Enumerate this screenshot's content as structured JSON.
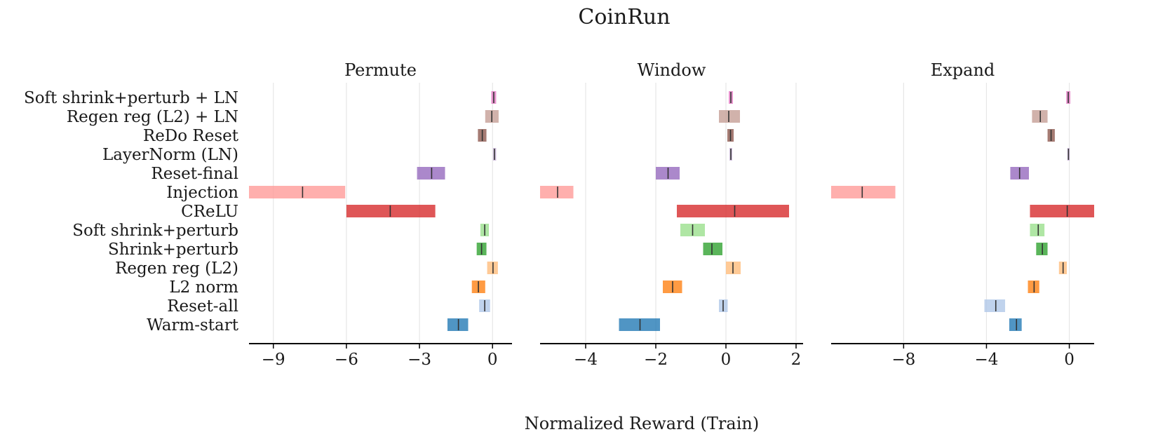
{
  "chart_data": {
    "type": "bar",
    "chart_style": "horizontal range bars with median marker",
    "title": "CoinRun",
    "xlabel": "Normalized Reward (Train)",
    "methods": [
      "Soft shrink+perturb + LN",
      "Regen reg (L2) + LN",
      "ReDo Reset",
      "LayerNorm (LN)",
      "Reset-final",
      "Injection",
      "CReLU",
      "Soft shrink+perturb",
      "Shrink+perturb",
      "Regen reg (L2)",
      "L2 norm",
      "Reset-all",
      "Warm-start"
    ],
    "colors": {
      "Soft shrink+perturb + LN": "#e377c2",
      "Regen reg (L2) + LN": "#c49c94",
      "ReDo Reset": "#8c564b",
      "LayerNorm (LN)": "#c5b0d5",
      "Reset-final": "#9467bd",
      "Injection": "#ff9896",
      "CReLU": "#d62728",
      "Soft shrink+perturb": "#98df8a",
      "Shrink+perturb": "#2ca02c",
      "Regen reg (L2)": "#ffbb78",
      "L2 norm": "#ff7f0e",
      "Reset-all": "#aec7e8",
      "Warm-start": "#1f77b4"
    },
    "panels": [
      {
        "subtitle": "Permute",
        "xlim": [
          -10.0,
          0.8
        ],
        "xticks": [
          -9,
          -6,
          -3,
          0
        ],
        "xtick_labels": [
          "−9",
          "−6",
          "−3",
          "0"
        ],
        "series": [
          {
            "name": "Soft shrink+perturb + LN",
            "low": -0.05,
            "high": 0.15,
            "median": 0.05
          },
          {
            "name": "Regen reg (L2) + LN",
            "low": -0.3,
            "high": 0.25,
            "median": -0.03
          },
          {
            "name": "ReDo Reset",
            "low": -0.6,
            "high": -0.25,
            "median": -0.42
          },
          {
            "name": "LayerNorm (LN)",
            "low": 0.02,
            "high": 0.15,
            "median": 0.08
          },
          {
            "name": "Reset-final",
            "low": -3.1,
            "high": -1.95,
            "median": -2.5
          },
          {
            "name": "Injection",
            "low": -10.0,
            "high": -6.05,
            "median": -7.8
          },
          {
            "name": "CReLU",
            "low": -6.0,
            "high": -2.35,
            "median": -4.2
          },
          {
            "name": "Soft shrink+perturb",
            "low": -0.5,
            "high": -0.15,
            "median": -0.32
          },
          {
            "name": "Shrink+perturb",
            "low": -0.65,
            "high": -0.25,
            "median": -0.45
          },
          {
            "name": "Regen reg (L2)",
            "low": -0.22,
            "high": 0.22,
            "median": 0.02
          },
          {
            "name": "L2 norm",
            "low": -0.85,
            "high": -0.3,
            "median": -0.58
          },
          {
            "name": "Reset-all",
            "low": -0.55,
            "high": -0.1,
            "median": -0.32
          },
          {
            "name": "Warm-start",
            "low": -1.85,
            "high": -1.0,
            "median": -1.4
          }
        ]
      },
      {
        "subtitle": "Window",
        "xlim": [
          -5.3,
          2.2
        ],
        "xticks": [
          -4,
          -2,
          0,
          2
        ],
        "xtick_labels": [
          "−4",
          "−2",
          "0",
          "2"
        ],
        "series": [
          {
            "name": "Soft shrink+perturb + LN",
            "low": 0.08,
            "high": 0.2,
            "median": 0.14
          },
          {
            "name": "Regen reg (L2) + LN",
            "low": -0.2,
            "high": 0.4,
            "median": 0.08
          },
          {
            "name": "ReDo Reset",
            "low": 0.04,
            "high": 0.22,
            "median": 0.13
          },
          {
            "name": "LayerNorm (LN)",
            "low": 0.1,
            "high": 0.18,
            "median": 0.14
          },
          {
            "name": "Reset-final",
            "low": -2.0,
            "high": -1.32,
            "median": -1.65
          },
          {
            "name": "Injection",
            "low": -5.3,
            "high": -4.35,
            "median": -4.8
          },
          {
            "name": "CReLU",
            "low": -1.4,
            "high": 1.8,
            "median": 0.25
          },
          {
            "name": "Soft shrink+perturb",
            "low": -1.3,
            "high": -0.6,
            "median": -0.95
          },
          {
            "name": "Shrink+perturb",
            "low": -0.65,
            "high": -0.1,
            "median": -0.4
          },
          {
            "name": "Regen reg (L2)",
            "low": 0.0,
            "high": 0.42,
            "median": 0.2
          },
          {
            "name": "L2 norm",
            "low": -1.8,
            "high": -1.25,
            "median": -1.52
          },
          {
            "name": "Reset-all",
            "low": -0.2,
            "high": 0.05,
            "median": -0.08
          },
          {
            "name": "Warm-start",
            "low": -3.05,
            "high": -1.88,
            "median": -2.45
          }
        ]
      },
      {
        "subtitle": "Expand",
        "xlim": [
          -11.5,
          1.2
        ],
        "xticks": [
          -8,
          -4,
          0
        ],
        "xtick_labels": [
          "−8",
          "−4",
          "0"
        ],
        "series": [
          {
            "name": "Soft shrink+perturb + LN",
            "low": -0.15,
            "high": 0.05,
            "median": -0.05
          },
          {
            "name": "Regen reg (L2) + LN",
            "low": -1.8,
            "high": -1.05,
            "median": -1.4
          },
          {
            "name": "ReDo Reset",
            "low": -1.05,
            "high": -0.7,
            "median": -0.88
          },
          {
            "name": "LayerNorm (LN)",
            "low": -0.1,
            "high": 0.02,
            "median": -0.04
          },
          {
            "name": "Reset-final",
            "low": -2.85,
            "high": -1.95,
            "median": -2.4
          },
          {
            "name": "Injection",
            "low": -11.5,
            "high": -8.4,
            "median": -10.0
          },
          {
            "name": "CReLU",
            "low": -1.9,
            "high": 1.2,
            "median": -0.1
          },
          {
            "name": "Soft shrink+perturb",
            "low": -1.9,
            "high": -1.2,
            "median": -1.5
          },
          {
            "name": "Shrink+perturb",
            "low": -1.6,
            "high": -1.05,
            "median": -1.3
          },
          {
            "name": "Regen reg (L2)",
            "low": -0.5,
            "high": -0.12,
            "median": -0.3
          },
          {
            "name": "L2 norm",
            "low": -2.0,
            "high": -1.45,
            "median": -1.7
          },
          {
            "name": "Reset-all",
            "low": -4.1,
            "high": -3.1,
            "median": -3.55
          },
          {
            "name": "Warm-start",
            "low": -2.9,
            "high": -2.3,
            "median": -2.55
          }
        ]
      }
    ]
  }
}
